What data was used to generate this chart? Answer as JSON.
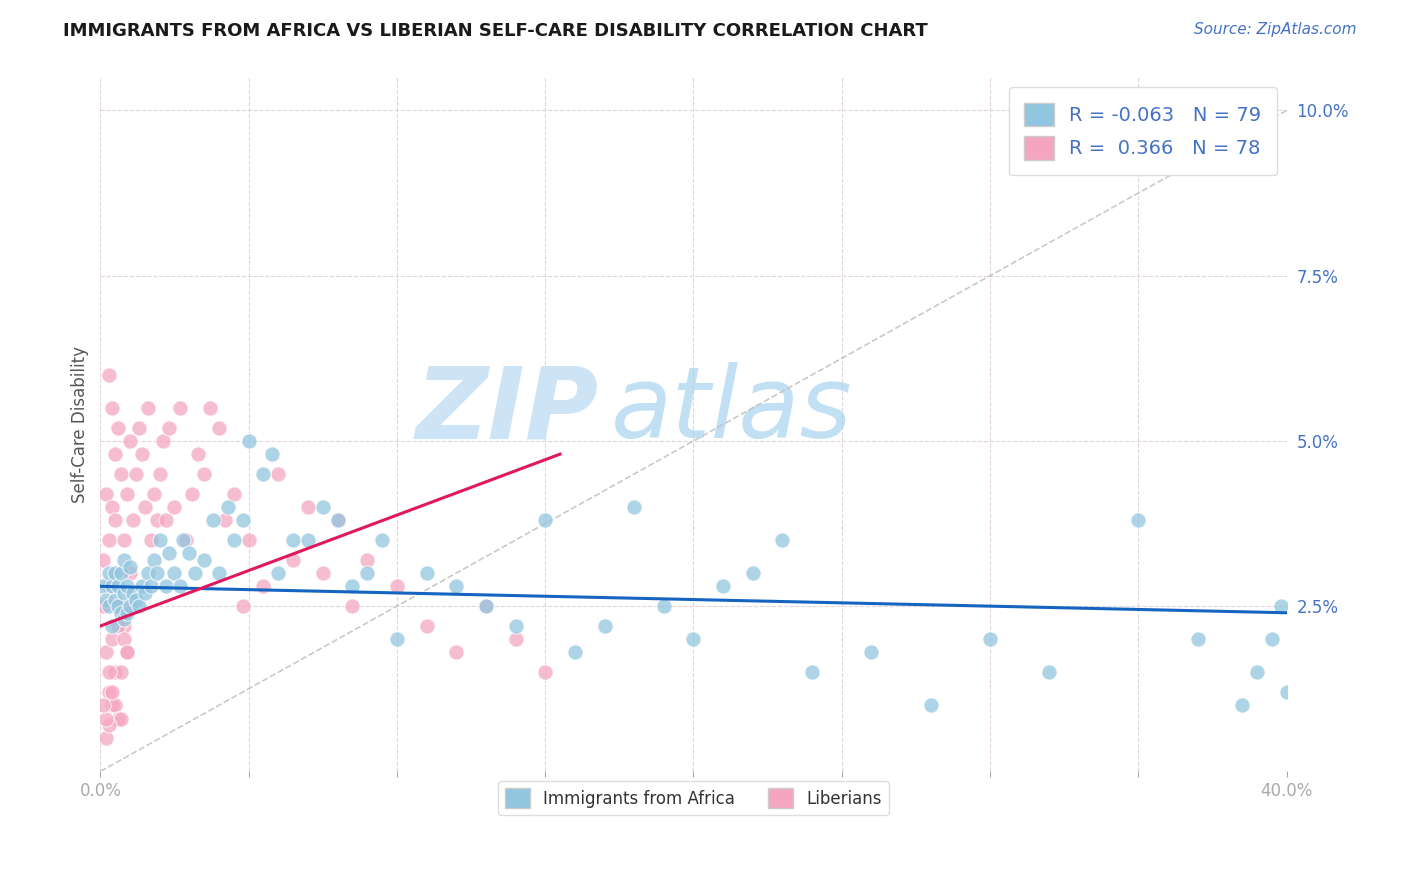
{
  "title": "IMMIGRANTS FROM AFRICA VS LIBERIAN SELF-CARE DISABILITY CORRELATION CHART",
  "source": "Source: ZipAtlas.com",
  "ylabel": "Self-Care Disability",
  "xlim": [
    0.0,
    0.4
  ],
  "ylim": [
    0.0,
    0.105
  ],
  "xticks": [
    0.0,
    0.05,
    0.1,
    0.15,
    0.2,
    0.25,
    0.3,
    0.35,
    0.4
  ],
  "yticks": [
    0.0,
    0.025,
    0.05,
    0.075,
    0.1
  ],
  "legend_R1": "-0.063",
  "legend_N1": "79",
  "legend_R2": "0.366",
  "legend_N2": "78",
  "blue_color": "#92c5de",
  "pink_color": "#f4a6c0",
  "trend_blue": "#1565c0",
  "trend_pink": "#e0185e",
  "diag_color": "#c0c0c0",
  "watermark_color": "#cce4f5",
  "blue_trend_x0": 0.0,
  "blue_trend_y0": 0.028,
  "blue_trend_x1": 0.4,
  "blue_trend_y1": 0.024,
  "pink_trend_x0": 0.0,
  "pink_trend_y0": 0.022,
  "pink_trend_x1": 0.155,
  "pink_trend_y1": 0.048,
  "blue_scatter_x": [
    0.001,
    0.002,
    0.003,
    0.003,
    0.004,
    0.004,
    0.005,
    0.005,
    0.006,
    0.006,
    0.007,
    0.007,
    0.008,
    0.008,
    0.008,
    0.009,
    0.009,
    0.01,
    0.01,
    0.011,
    0.012,
    0.013,
    0.014,
    0.015,
    0.016,
    0.017,
    0.018,
    0.019,
    0.02,
    0.022,
    0.023,
    0.025,
    0.027,
    0.028,
    0.03,
    0.032,
    0.035,
    0.038,
    0.04,
    0.043,
    0.045,
    0.048,
    0.05,
    0.055,
    0.058,
    0.06,
    0.065,
    0.07,
    0.075,
    0.08,
    0.085,
    0.09,
    0.095,
    0.1,
    0.11,
    0.12,
    0.13,
    0.14,
    0.15,
    0.16,
    0.17,
    0.18,
    0.19,
    0.2,
    0.22,
    0.24,
    0.26,
    0.28,
    0.3,
    0.32,
    0.35,
    0.37,
    0.385,
    0.39,
    0.395,
    0.398,
    0.4,
    0.21,
    0.23
  ],
  "blue_scatter_y": [
    0.028,
    0.026,
    0.03,
    0.025,
    0.028,
    0.022,
    0.026,
    0.03,
    0.025,
    0.028,
    0.024,
    0.03,
    0.023,
    0.027,
    0.032,
    0.024,
    0.028,
    0.025,
    0.031,
    0.027,
    0.026,
    0.025,
    0.028,
    0.027,
    0.03,
    0.028,
    0.032,
    0.03,
    0.035,
    0.028,
    0.033,
    0.03,
    0.028,
    0.035,
    0.033,
    0.03,
    0.032,
    0.038,
    0.03,
    0.04,
    0.035,
    0.038,
    0.05,
    0.045,
    0.048,
    0.03,
    0.035,
    0.035,
    0.04,
    0.038,
    0.028,
    0.03,
    0.035,
    0.02,
    0.03,
    0.028,
    0.025,
    0.022,
    0.038,
    0.018,
    0.022,
    0.04,
    0.025,
    0.02,
    0.03,
    0.015,
    0.018,
    0.01,
    0.02,
    0.015,
    0.038,
    0.02,
    0.01,
    0.015,
    0.02,
    0.025,
    0.012,
    0.028,
    0.035
  ],
  "pink_scatter_x": [
    0.001,
    0.001,
    0.002,
    0.002,
    0.003,
    0.003,
    0.004,
    0.004,
    0.005,
    0.005,
    0.006,
    0.006,
    0.007,
    0.007,
    0.008,
    0.008,
    0.009,
    0.009,
    0.01,
    0.01,
    0.011,
    0.012,
    0.013,
    0.014,
    0.015,
    0.016,
    0.017,
    0.018,
    0.019,
    0.02,
    0.021,
    0.022,
    0.023,
    0.025,
    0.027,
    0.029,
    0.031,
    0.033,
    0.035,
    0.037,
    0.04,
    0.042,
    0.045,
    0.048,
    0.05,
    0.055,
    0.06,
    0.065,
    0.07,
    0.075,
    0.08,
    0.085,
    0.09,
    0.1,
    0.11,
    0.12,
    0.13,
    0.14,
    0.15,
    0.003,
    0.004,
    0.005,
    0.006,
    0.007,
    0.008,
    0.009,
    0.01,
    0.003,
    0.004,
    0.005,
    0.006,
    0.007,
    0.002,
    0.003,
    0.004,
    0.002,
    0.003,
    0.001
  ],
  "pink_scatter_y": [
    0.032,
    0.025,
    0.042,
    0.018,
    0.035,
    0.028,
    0.04,
    0.02,
    0.038,
    0.015,
    0.052,
    0.025,
    0.045,
    0.015,
    0.035,
    0.022,
    0.042,
    0.018,
    0.05,
    0.025,
    0.038,
    0.045,
    0.052,
    0.048,
    0.04,
    0.055,
    0.035,
    0.042,
    0.038,
    0.045,
    0.05,
    0.038,
    0.052,
    0.04,
    0.055,
    0.035,
    0.042,
    0.048,
    0.045,
    0.055,
    0.052,
    0.038,
    0.042,
    0.025,
    0.035,
    0.028,
    0.045,
    0.032,
    0.04,
    0.03,
    0.038,
    0.025,
    0.032,
    0.028,
    0.022,
    0.018,
    0.025,
    0.02,
    0.015,
    0.06,
    0.055,
    0.048,
    0.022,
    0.025,
    0.02,
    0.018,
    0.03,
    0.012,
    0.01,
    0.01,
    0.008,
    0.008,
    0.005,
    0.007,
    0.012,
    0.008,
    0.015,
    0.01
  ]
}
